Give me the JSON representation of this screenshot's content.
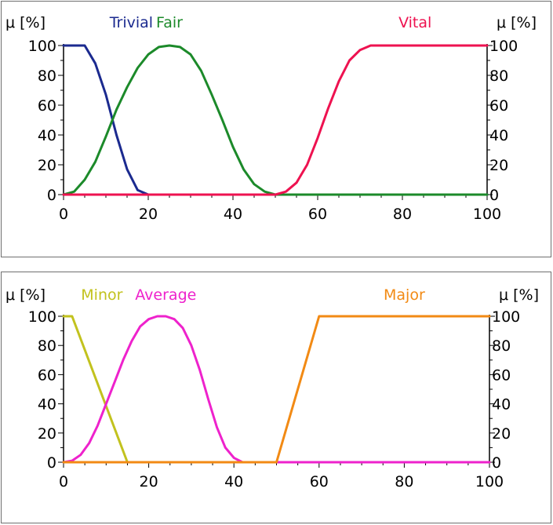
{
  "chart_data": [
    {
      "type": "line",
      "axis_label_left": "μ [%]",
      "axis_label_right": "μ [%]",
      "xlim": [
        0,
        100
      ],
      "ylim": [
        0,
        100
      ],
      "x_ticks": [
        "0",
        "20",
        "40",
        "60",
        "80",
        "100"
      ],
      "y_ticks": [
        "0",
        "20",
        "40",
        "60",
        "80",
        "100"
      ],
      "grid": false,
      "legend": "top, inline series labels",
      "series": [
        {
          "name": "Trivial",
          "color": "#1b2a8f",
          "x": [
            0,
            2.5,
            5,
            7.5,
            10,
            12.5,
            15,
            17.5,
            20,
            100
          ],
          "y": [
            100,
            100,
            100,
            88,
            67,
            40,
            17,
            3,
            0,
            0
          ]
        },
        {
          "name": "Fair",
          "color": "#1c8a2a",
          "x": [
            0,
            2.5,
            5,
            7.5,
            10,
            12.5,
            15,
            17.5,
            20,
            22.5,
            25,
            27.5,
            30,
            32.5,
            35,
            37.5,
            40,
            42.5,
            45,
            47.5,
            50,
            100
          ],
          "y": [
            0,
            2,
            10,
            22,
            39,
            57,
            72,
            85,
            94,
            99,
            100,
            99,
            94,
            83,
            67,
            50,
            32,
            17,
            7,
            2,
            0,
            0
          ]
        },
        {
          "name": "Vital",
          "color": "#ee1250",
          "x": [
            0,
            50,
            52.5,
            55,
            57.5,
            60,
            62.5,
            65,
            67.5,
            70,
            72.5,
            75,
            100
          ],
          "y": [
            0,
            0,
            2,
            8,
            20,
            38,
            58,
            76,
            90,
            97,
            100,
            100,
            100
          ]
        }
      ]
    },
    {
      "type": "line",
      "axis_label_left": "μ [%]",
      "axis_label_right": "μ [%]",
      "xlim": [
        0,
        100
      ],
      "ylim": [
        0,
        100
      ],
      "x_ticks": [
        "0",
        "20",
        "40",
        "60",
        "80",
        "100"
      ],
      "y_ticks": [
        "0",
        "20",
        "40",
        "60",
        "80",
        "100"
      ],
      "grid": false,
      "legend": "top, inline series labels",
      "series": [
        {
          "name": "Minor",
          "color": "#c2c21e",
          "x": [
            0,
            2,
            15,
            100
          ],
          "y": [
            100,
            100,
            0,
            0
          ]
        },
        {
          "name": "Average",
          "color": "#ee22cc",
          "x": [
            0,
            2,
            4,
            6,
            8,
            10,
            12,
            14,
            16,
            18,
            20,
            22,
            24,
            26,
            28,
            30,
            32,
            34,
            36,
            38,
            40,
            42,
            44,
            100
          ],
          "y": [
            0,
            1,
            5,
            13,
            25,
            40,
            55,
            70,
            83,
            93,
            98,
            100,
            100,
            98,
            92,
            80,
            63,
            43,
            24,
            10,
            3,
            0,
            0,
            0
          ]
        },
        {
          "name": "Major",
          "color": "#f28a14",
          "x": [
            0,
            50,
            60,
            100
          ],
          "y": [
            0,
            0,
            100,
            100
          ]
        }
      ]
    }
  ]
}
